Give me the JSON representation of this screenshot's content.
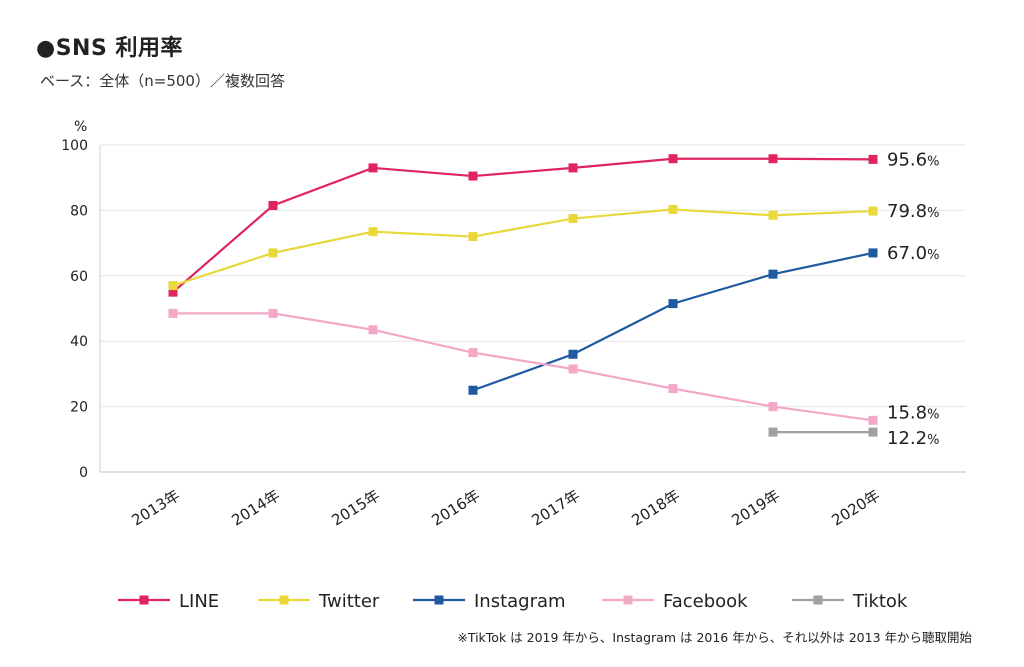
{
  "title": "●SNS 利用率",
  "subtitle": "ベース：全体（n=500）／複数回答",
  "note": "※TikTok は 2019 年から、Instagram は 2016 年から、それ以外は 2013 年から聴取開始",
  "chart_data": {
    "type": "line",
    "title": "●SNS 利用率",
    "ylabel": "%",
    "ylim": [
      0,
      100
    ],
    "yticks": [
      "0",
      "20",
      "40",
      "60",
      "80",
      "100"
    ],
    "grid": true,
    "legend_position": "bottom",
    "categories": [
      "2013年",
      "2014年",
      "2015年",
      "2016年",
      "2017年",
      "2018年",
      "2019年",
      "2020年"
    ],
    "series": [
      {
        "name": "LINE",
        "color": "#e0245e",
        "values": [
          55,
          81.5,
          93,
          90.5,
          93,
          95.8,
          95.8,
          95.6
        ],
        "end_label": "95.6",
        "end_unit": "%"
      },
      {
        "name": "Twitter",
        "color": "#e8d83a",
        "values": [
          57,
          67,
          73.5,
          72,
          77.5,
          80.3,
          78.5,
          79.8
        ],
        "end_label": "79.8",
        "end_unit": "%"
      },
      {
        "name": "Instagram",
        "color": "#1f5aa0",
        "values": [
          null,
          null,
          null,
          25,
          36,
          51.5,
          60.5,
          67.0
        ],
        "end_label": "67.0",
        "end_unit": "%"
      },
      {
        "name": "Facebook",
        "color": "#f3a8c8",
        "values": [
          48.5,
          48.5,
          43.5,
          36.5,
          31.5,
          25.5,
          20,
          15.8
        ],
        "end_label": "15.8",
        "end_unit": "%"
      },
      {
        "name": "Tiktok",
        "color": "#a0a0a0",
        "values": [
          null,
          null,
          null,
          null,
          null,
          null,
          12.2,
          12.2
        ],
        "end_label": "12.2",
        "end_unit": "%"
      }
    ]
  }
}
